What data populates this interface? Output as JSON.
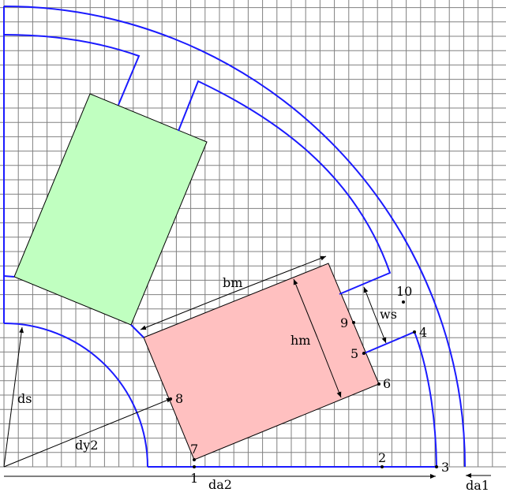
{
  "colors": {
    "grid": "#808080",
    "boundary": "#1a1aff",
    "magnet_green": "#c0ffc0",
    "magnet_red": "#ffc0c0",
    "outline": "#000000"
  },
  "dimensions": {
    "da1": "da1",
    "da2": "da2",
    "ds": "ds",
    "dy2": "dy2",
    "bm": "bm",
    "hm": "hm",
    "ws": "ws"
  },
  "points": [
    "1",
    "2",
    "3",
    "4",
    "5",
    "6",
    "7",
    "8",
    "9",
    "10"
  ]
}
